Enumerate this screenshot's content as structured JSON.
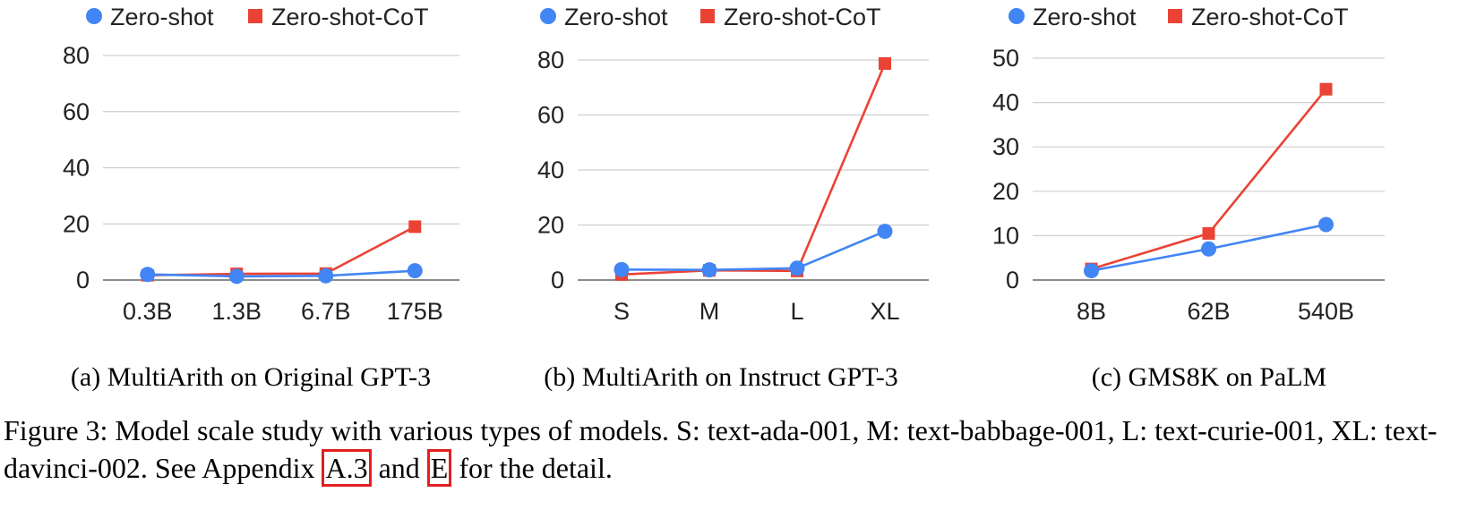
{
  "chart_data": [
    {
      "type": "line",
      "categories": [
        "0.3B",
        "1.3B",
        "6.7B",
        "175B"
      ],
      "ylim": [
        0,
        80
      ],
      "yticks": [
        0,
        20,
        40,
        60,
        80
      ],
      "grid": true,
      "legend_position": "top",
      "series": [
        {
          "name": "Zero-shot",
          "marker": "circle",
          "color": "#4285f4",
          "values": [
            2.0,
            1.3,
            1.5,
            3.3
          ]
        },
        {
          "name": "Zero-shot-CoT",
          "marker": "square",
          "color": "#ea4335",
          "values": [
            1.7,
            2.2,
            2.3,
            19.0
          ]
        }
      ],
      "caption": "(a) MultiArith on Original GPT-3"
    },
    {
      "type": "line",
      "categories": [
        "S",
        "M",
        "L",
        "XL"
      ],
      "ylim": [
        0,
        80
      ],
      "yticks": [
        0,
        20,
        40,
        60,
        80
      ],
      "grid": true,
      "legend_position": "top",
      "series": [
        {
          "name": "Zero-shot",
          "marker": "circle",
          "color": "#4285f4",
          "values": [
            3.8,
            3.7,
            4.3,
            17.7
          ]
        },
        {
          "name": "Zero-shot-CoT",
          "marker": "square",
          "color": "#ea4335",
          "values": [
            2.0,
            3.5,
            3.3,
            78.7
          ]
        }
      ],
      "caption": "(b) MultiArith on Instruct GPT-3"
    },
    {
      "type": "line",
      "categories": [
        "8B",
        "62B",
        "540B"
      ],
      "ylim": [
        0,
        50
      ],
      "yticks": [
        0,
        10,
        20,
        30,
        40,
        50
      ],
      "grid": true,
      "legend_position": "top",
      "series": [
        {
          "name": "Zero-shot",
          "marker": "circle",
          "color": "#4285f4",
          "values": [
            2.1,
            7.0,
            12.5
          ]
        },
        {
          "name": "Zero-shot-CoT",
          "marker": "square",
          "color": "#ea4335",
          "values": [
            2.5,
            10.5,
            43.0
          ]
        }
      ],
      "caption": "(c) GMS8K on PaLM"
    }
  ],
  "figure_caption": {
    "part1": "Figure 3: Model scale study with various types of models. S: text-ada-001, M: text-babbage-001, L: text-curie-001, XL: text-davinci-002. See Appendix ",
    "ref1": "A.3",
    "part2": " and ",
    "ref2": "E",
    "part3": " for the detail."
  }
}
